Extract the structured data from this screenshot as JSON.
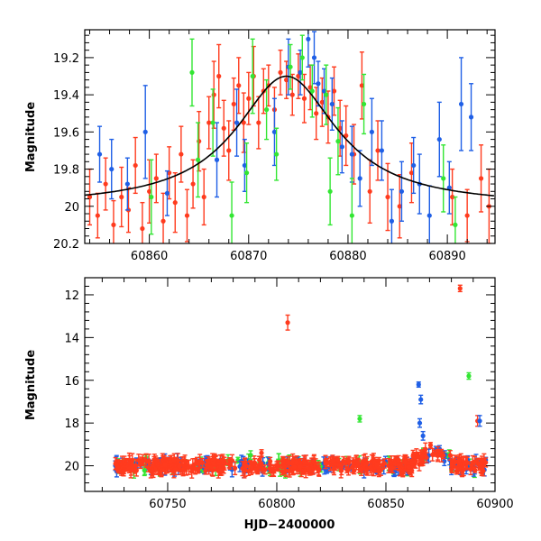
{
  "colors": {
    "red": "#ff3b1e",
    "blue": "#1f5fe6",
    "green": "#33e633",
    "model": "#000000"
  },
  "chart_data": [
    {
      "type": "scatter",
      "panel": "top",
      "xlabel": "",
      "ylabel": "Magnitude",
      "xlim": [
        60853.5,
        60894.8
      ],
      "ylim": [
        20.2,
        19.05
      ],
      "y_inverted": true,
      "xticks": [
        60860,
        60870,
        60880,
        60890
      ],
      "yticks": [
        19.2,
        19.4,
        19.6,
        19.8,
        20,
        20.2
      ],
      "model_curve": {
        "type": "line",
        "peak_x": 60873.8,
        "peak_mag": 19.3,
        "baseline_mag": 20.0,
        "description": "Lorentzian-like brightening"
      },
      "series": [
        {
          "color": "red",
          "points": [
            [
              60854.0,
              19.95,
              0.15
            ],
            [
              60854.8,
              20.05,
              0.12
            ],
            [
              60855.6,
              19.88,
              0.14
            ],
            [
              60856.4,
              20.1,
              0.13
            ],
            [
              60857.2,
              19.95,
              0.16
            ],
            [
              60857.9,
              20.02,
              0.12
            ],
            [
              60858.6,
              19.78,
              0.15
            ],
            [
              60859.3,
              20.12,
              0.14
            ],
            [
              60860.0,
              19.92,
              0.17
            ],
            [
              60860.7,
              19.85,
              0.13
            ],
            [
              60861.4,
              20.08,
              0.15
            ],
            [
              60862.0,
              19.82,
              0.14
            ],
            [
              60862.6,
              19.98,
              0.16
            ],
            [
              60863.2,
              19.72,
              0.15
            ],
            [
              60863.8,
              20.05,
              0.14
            ],
            [
              60864.4,
              19.88,
              0.13
            ],
            [
              60865.0,
              19.65,
              0.16
            ],
            [
              60865.5,
              19.95,
              0.15
            ],
            [
              60866.0,
              19.55,
              0.14
            ],
            [
              60866.5,
              19.4,
              0.18
            ],
            [
              60867.0,
              19.3,
              0.17
            ],
            [
              60867.5,
              19.58,
              0.15
            ],
            [
              60868.0,
              19.7,
              0.16
            ],
            [
              60868.5,
              19.45,
              0.14
            ],
            [
              60869.0,
              19.35,
              0.15
            ],
            [
              60869.5,
              19.55,
              0.16
            ],
            [
              60870.0,
              19.42,
              0.14
            ],
            [
              60870.5,
              19.3,
              0.16
            ],
            [
              60871.0,
              19.55,
              0.14
            ],
            [
              60871.5,
              19.38,
              0.12
            ],
            [
              60872.0,
              19.35,
              0.11
            ],
            [
              60872.6,
              19.48,
              0.12
            ],
            [
              60873.2,
              19.28,
              0.12
            ],
            [
              60873.8,
              19.32,
              0.1
            ],
            [
              60874.4,
              19.4,
              0.11
            ],
            [
              60875.0,
              19.3,
              0.12
            ],
            [
              60875.6,
              19.42,
              0.13
            ],
            [
              60876.2,
              19.36,
              0.12
            ],
            [
              60876.8,
              19.5,
              0.14
            ],
            [
              60877.4,
              19.44,
              0.13
            ],
            [
              60878.0,
              19.52,
              0.14
            ],
            [
              60878.6,
              19.38,
              0.13
            ],
            [
              60879.2,
              19.58,
              0.15
            ],
            [
              60879.8,
              19.62,
              0.16
            ],
            [
              60880.6,
              19.72,
              0.16
            ],
            [
              60881.4,
              19.35,
              0.18
            ],
            [
              60882.2,
              19.92,
              0.17
            ],
            [
              60883.0,
              19.7,
              0.16
            ],
            [
              60884.0,
              19.95,
              0.18
            ],
            [
              60885.2,
              20.0,
              0.17
            ],
            [
              60886.4,
              19.82,
              0.16
            ],
            [
              60890.5,
              19.95,
              0.15
            ],
            [
              60892.0,
              20.05,
              0.14
            ],
            [
              60893.4,
              19.85,
              0.18
            ],
            [
              60894.2,
              20.0,
              0.2
            ]
          ]
        },
        {
          "color": "blue",
          "points": [
            [
              60855.0,
              19.72,
              0.15
            ],
            [
              60856.2,
              19.8,
              0.16
            ],
            [
              60857.8,
              19.88,
              0.14
            ],
            [
              60859.6,
              19.6,
              0.25
            ],
            [
              60861.8,
              19.93,
              0.12
            ],
            [
              60866.8,
              19.75,
              0.2
            ],
            [
              60868.8,
              19.55,
              0.18
            ],
            [
              60869.6,
              19.78,
              0.14
            ],
            [
              60872.6,
              19.6,
              0.18
            ],
            [
              60874.0,
              19.25,
              0.15
            ],
            [
              60875.2,
              19.28,
              0.12
            ],
            [
              60876.0,
              19.1,
              0.15
            ],
            [
              60876.6,
              19.2,
              0.14
            ],
            [
              60877.0,
              19.34,
              0.12
            ],
            [
              60877.6,
              19.38,
              0.12
            ],
            [
              60878.4,
              19.45,
              0.14
            ],
            [
              60879.4,
              19.68,
              0.14
            ],
            [
              60880.4,
              19.72,
              0.15
            ],
            [
              60881.2,
              19.85,
              0.15
            ],
            [
              60882.4,
              19.6,
              0.18
            ],
            [
              60883.4,
              19.7,
              0.16
            ],
            [
              60884.4,
              20.08,
              0.17
            ],
            [
              60885.4,
              19.92,
              0.16
            ],
            [
              60886.6,
              19.78,
              0.15
            ],
            [
              60887.2,
              19.88,
              0.16
            ],
            [
              60888.2,
              20.05,
              0.16
            ],
            [
              60889.2,
              19.64,
              0.2
            ],
            [
              60890.2,
              19.9,
              0.14
            ],
            [
              60891.4,
              19.45,
              0.25
            ],
            [
              60892.4,
              19.52,
              0.18
            ]
          ]
        },
        {
          "color": "green",
          "points": [
            [
              60860.2,
              19.95,
              0.2
            ],
            [
              60864.3,
              19.28,
              0.18
            ],
            [
              60864.9,
              19.75,
              0.2
            ],
            [
              60866.4,
              19.55,
              0.18
            ],
            [
              60868.3,
              20.05,
              0.18
            ],
            [
              60869.8,
              19.82,
              0.16
            ],
            [
              60870.4,
              19.3,
              0.2
            ],
            [
              60871.8,
              19.48,
              0.16
            ],
            [
              60872.8,
              19.72,
              0.14
            ],
            [
              60874.2,
              19.25,
              0.12
            ],
            [
              60875.4,
              19.2,
              0.12
            ],
            [
              60876.4,
              19.38,
              0.14
            ],
            [
              60877.8,
              19.4,
              0.16
            ],
            [
              60878.2,
              19.92,
              0.18
            ],
            [
              60879.0,
              19.65,
              0.18
            ],
            [
              60880.4,
              20.05,
              0.2
            ],
            [
              60881.6,
              19.45,
              0.16
            ],
            [
              60889.6,
              19.85,
              0.18
            ],
            [
              60890.8,
              20.1,
              0.15
            ]
          ]
        }
      ]
    },
    {
      "type": "scatter",
      "panel": "bottom",
      "xlabel": "HJD−2400000",
      "ylabel": "Magnitude",
      "xlim": [
        60712,
        60900
      ],
      "ylim": [
        21.2,
        11.2
      ],
      "y_inverted": true,
      "xticks": [
        60750,
        60800,
        60850,
        60900
      ],
      "yticks": [
        12,
        14,
        16,
        18,
        20
      ],
      "series": [
        {
          "color": "red",
          "outliers": [
            [
              60805,
              13.3,
              0.35
            ],
            [
              60884,
              11.7,
              0.15
            ],
            [
              60892,
              17.9,
              0.25
            ],
            [
              60793,
              19.4,
              0.15
            ]
          ]
        },
        {
          "color": "blue",
          "outliers": [
            [
              60865,
              16.2,
              0.12
            ],
            [
              60866,
              16.9,
              0.2
            ],
            [
              60865.5,
              18.0,
              0.2
            ],
            [
              60867,
              18.6,
              0.2
            ],
            [
              60893,
              17.9,
              0.25
            ]
          ]
        },
        {
          "color": "green",
          "outliers": [
            [
              60888,
              15.8,
              0.15
            ],
            [
              60838,
              17.8,
              0.15
            ],
            [
              60788,
              19.5,
              0.2
            ]
          ]
        }
      ]
    }
  ]
}
